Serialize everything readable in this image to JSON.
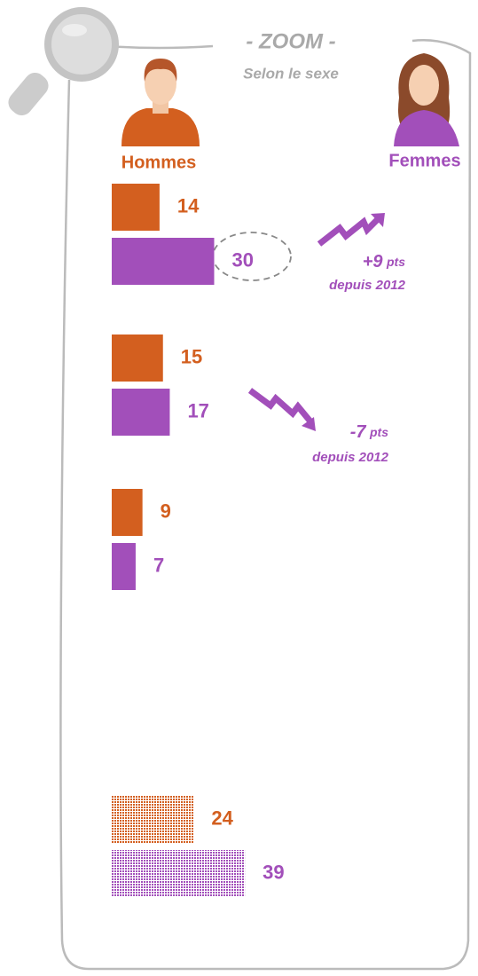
{
  "chart_data": {
    "type": "bar",
    "orientation": "horizontal",
    "title": "- ZOOM -",
    "subtitle": "Selon le sexe",
    "categories": [
      null,
      null,
      null,
      null
    ],
    "series": [
      {
        "name": "Hommes",
        "color": "#d35f1f",
        "values": [
          14,
          15,
          9,
          24
        ]
      },
      {
        "name": "Femmes",
        "color": "#a24fba",
        "values": [
          30,
          17,
          7,
          39
        ]
      }
    ],
    "annotations": [
      {
        "change": "+9",
        "unit": "pts",
        "note": "depuis 2012"
      },
      {
        "change": "-7",
        "unit": "pts",
        "note": "depuis 2012"
      }
    ]
  }
}
